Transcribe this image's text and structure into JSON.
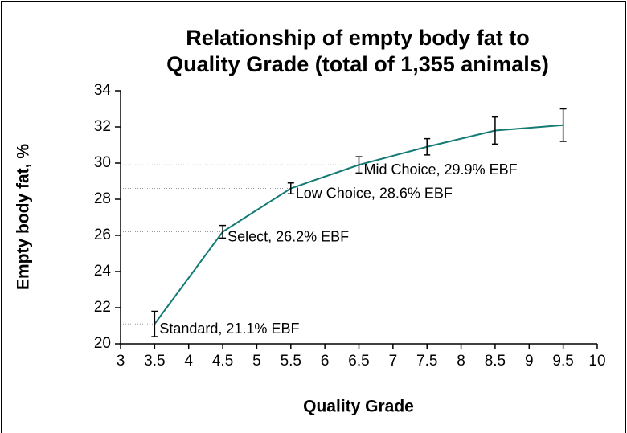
{
  "chart_data": {
    "type": "line",
    "title": [
      "Relationship of empty body fat to",
      "Quality Grade (total of 1,355 animals)"
    ],
    "x_label": "Quality Grade",
    "y_label": "Empty body fat, %",
    "x": [
      3.5,
      4.5,
      5.5,
      6.5,
      7.5,
      8.5,
      9.5
    ],
    "series": [
      {
        "color": "#137a74",
        "values": [
          21.1,
          26.2,
          28.6,
          29.9,
          30.9,
          31.8,
          32.1
        ],
        "errors": [
          0.7,
          0.35,
          0.3,
          0.45,
          0.45,
          0.75,
          0.9
        ]
      }
    ],
    "annotations": [
      "Standard, 21.1% EBF",
      "Select, 26.2% EBF",
      "Low Choice, 28.6% EBF",
      "Mid Choice, 29.9% EBF"
    ],
    "xlim": [
      3,
      10
    ],
    "xticks": [
      3,
      3.5,
      4,
      4.5,
      5,
      5.5,
      6,
      6.5,
      7,
      7.5,
      8,
      8.5,
      9,
      9.5,
      10
    ],
    "ylim": [
      20,
      34
    ],
    "yticks": [
      20,
      22,
      24,
      26,
      28,
      30,
      32,
      34
    ]
  }
}
